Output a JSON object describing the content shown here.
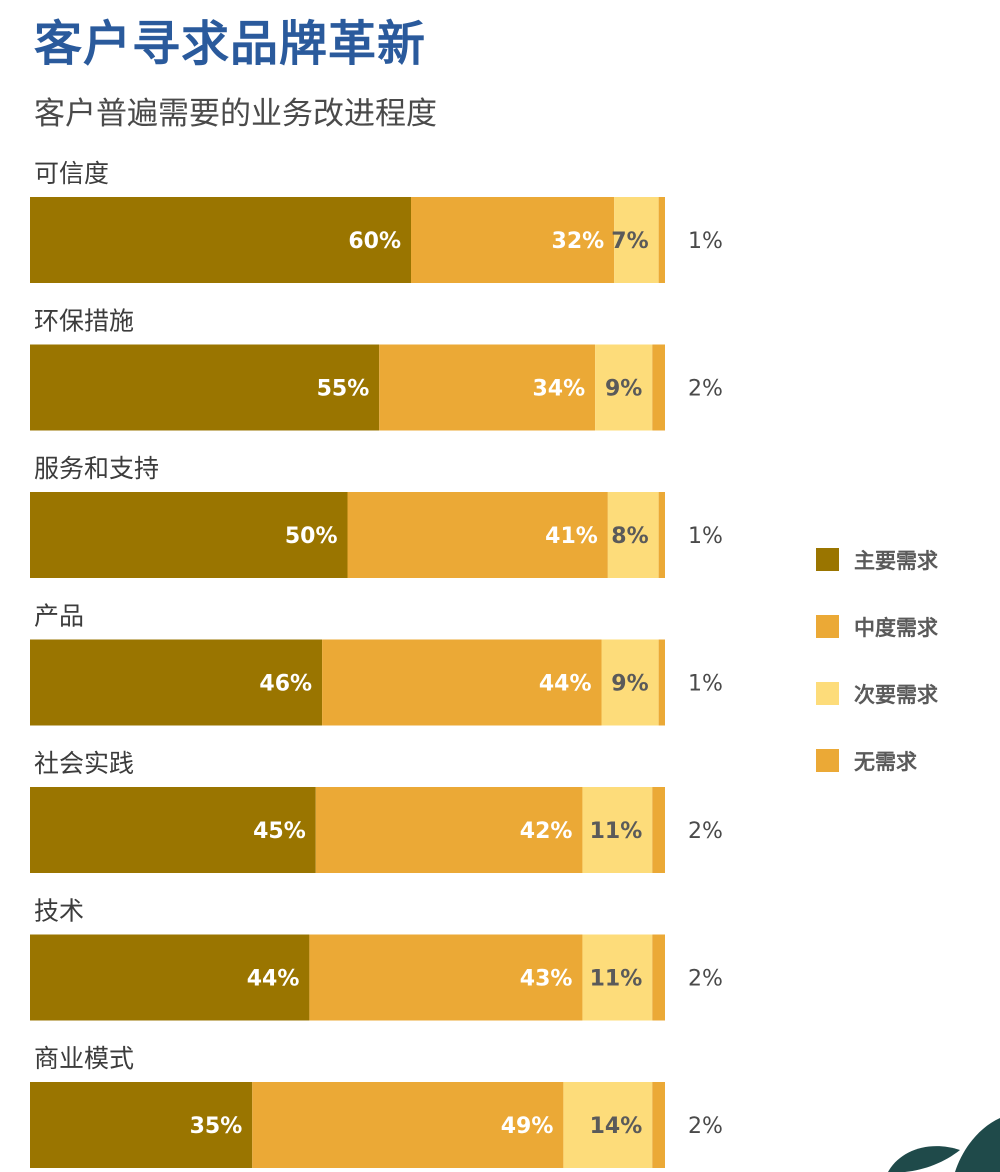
{
  "chart_data": {
    "type": "bar",
    "orientation": "horizontal",
    "stacked": true,
    "title": "客户寻求品牌革新",
    "subtitle": "客户普遍需要的业务改进程度",
    "categories": [
      "可信度",
      "环保措施",
      "服务和支持",
      "产品",
      "社会实践",
      "技术",
      "商业模式"
    ],
    "series": [
      {
        "name": "主要需求",
        "color": "#9a7500",
        "values": [
          60,
          55,
          50,
          46,
          45,
          44,
          35
        ]
      },
      {
        "name": "中度需求",
        "color": "#eba936",
        "values": [
          32,
          34,
          41,
          44,
          42,
          43,
          49
        ]
      },
      {
        "name": "次要需求",
        "color": "#fddc7a",
        "values": [
          7,
          9,
          8,
          9,
          11,
          11,
          14
        ]
      },
      {
        "name": "无需求",
        "color": "#eba936",
        "values": [
          1,
          2,
          1,
          1,
          2,
          2,
          2
        ]
      }
    ],
    "value_suffix": "%",
    "legend_position": "right",
    "grid": false,
    "xlim": [
      0,
      100
    ]
  }
}
